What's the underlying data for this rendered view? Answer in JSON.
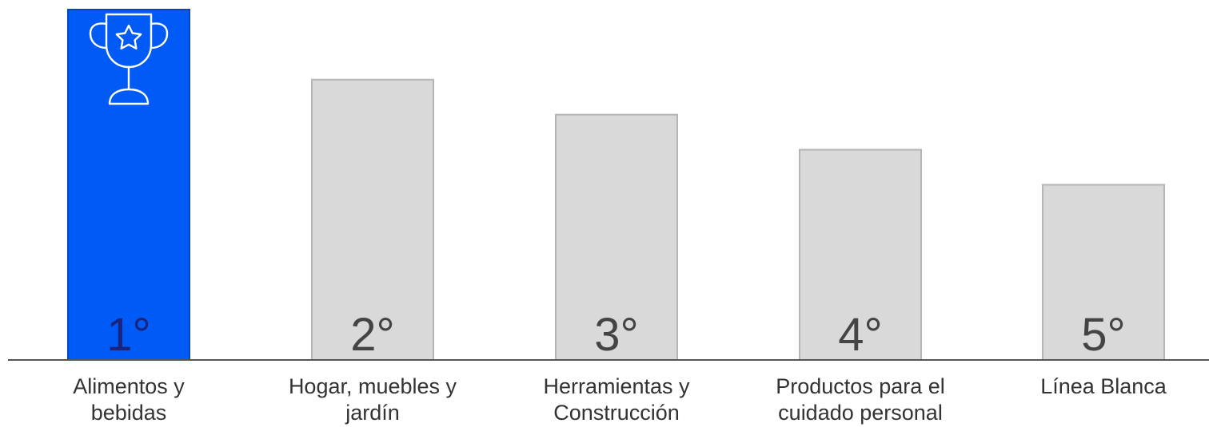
{
  "chart_data": {
    "type": "bar",
    "categories": [
      "Alimentos y bebidas",
      "Hogar, muebles y jardín",
      "Herramientas y Construcción",
      "Productos para el cuidado personal",
      "Línea Blanca"
    ],
    "values": [
      100,
      80,
      70,
      60,
      50
    ],
    "rank_labels": [
      "1°",
      "2°",
      "3°",
      "4°",
      "5°"
    ],
    "ylim": [
      0,
      100
    ],
    "grid": false,
    "colors": {
      "highlight": "#005af6",
      "highlight_stroke": "#0047c8",
      "bar": "#d9d9d9",
      "bar_stroke": "#b5b5b5",
      "axis": "#555555"
    },
    "highlight_icon": "trophy-star-icon"
  }
}
